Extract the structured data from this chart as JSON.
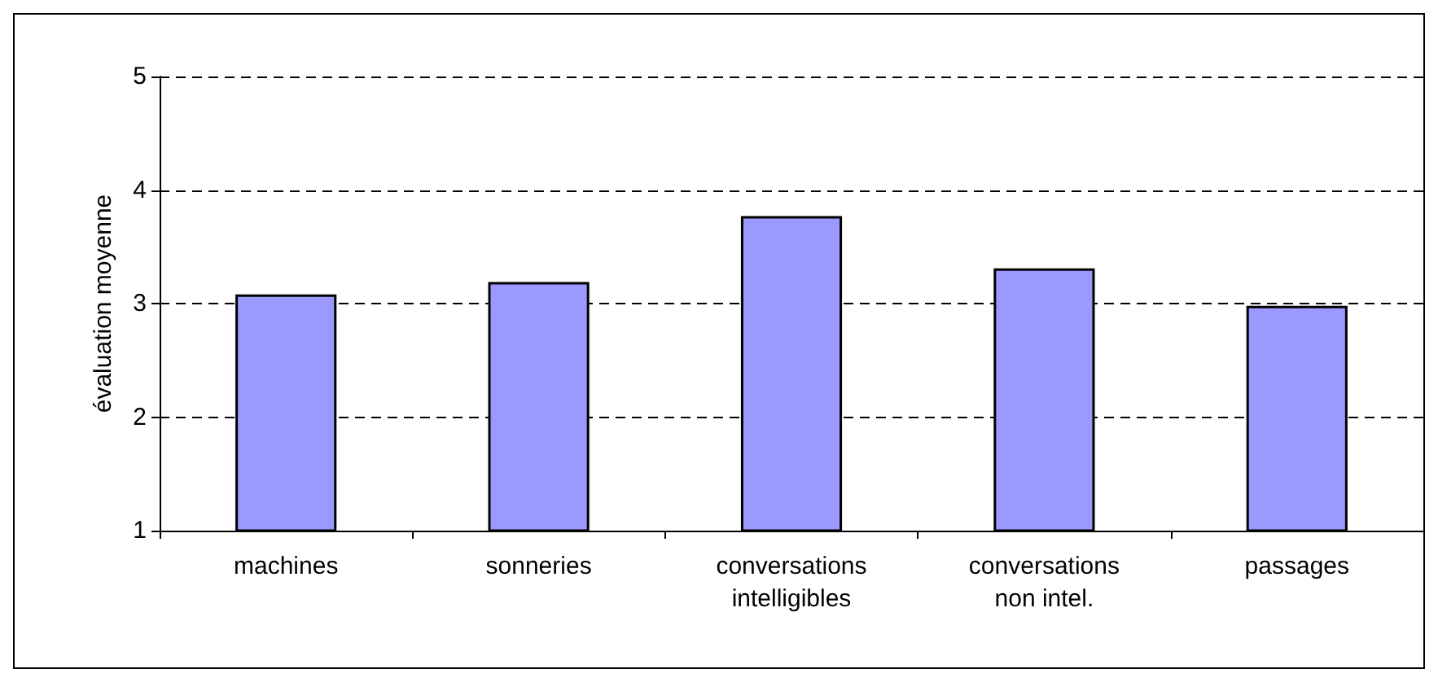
{
  "chart_data": {
    "type": "bar",
    "ylabel": "évaluation moyenne",
    "categories": [
      "machines",
      "sonneries",
      "conversations\nintelligibles",
      "conversations\nnon intel.",
      "passages"
    ],
    "values": [
      3.08,
      3.19,
      3.77,
      3.31,
      2.98
    ],
    "color": "#9999ff",
    "ylim": [
      1,
      5
    ],
    "yticks": [
      1,
      2,
      3,
      4,
      5
    ],
    "grid": "y"
  }
}
